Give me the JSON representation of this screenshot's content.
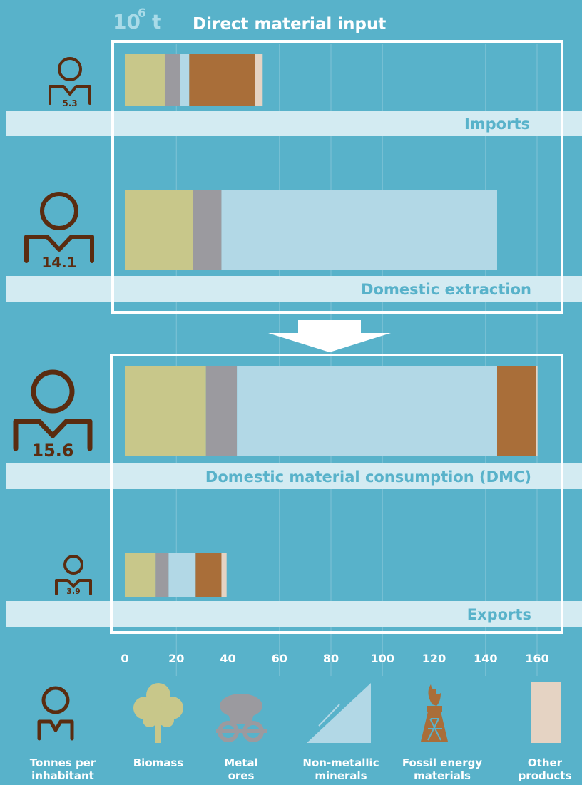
{
  "unit": {
    "base": "10",
    "exp": "6",
    "letter": "t"
  },
  "chart_data": {
    "type": "bar",
    "orientation": "horizontal",
    "stacked": true,
    "title": "Direct material input",
    "xlim": [
      0,
      160
    ],
    "xticks": [
      0,
      20,
      40,
      60,
      80,
      100,
      120,
      140,
      160
    ],
    "grid": true,
    "categories": [
      "Imports",
      "Domestic extraction",
      "Domestic material consumption (DMC)",
      "Exports"
    ],
    "tonnes_per_inhabitant": [
      "5.3",
      "14.1",
      "15.6",
      "3.9"
    ],
    "series": [
      {
        "name": "Biomass",
        "color": "#c8c78a",
        "values": [
          15.5,
          26.5,
          31.5,
          12
        ]
      },
      {
        "name": "Metal ores",
        "color": "#9b9a9f",
        "values": [
          6,
          11,
          12,
          5
        ]
      },
      {
        "name": "Non-metallic minerals",
        "color": "#b2d8e6",
        "values": [
          3.5,
          107,
          101,
          10.5
        ]
      },
      {
        "name": "Fossil energy materials",
        "color": "#a96e39",
        "values": [
          25.5,
          0,
          15,
          10
        ]
      },
      {
        "name": "Other products",
        "color": "#e5d3c3",
        "values": [
          3,
          0,
          0.7,
          2
        ]
      }
    ]
  },
  "legend": [
    {
      "icon": "person-icon",
      "lines": [
        "Tonnes per",
        "inhabitant"
      ]
    },
    {
      "icon": "tree-icon",
      "lines": [
        "Biomass"
      ]
    },
    {
      "icon": "mine-cart-icon",
      "lines": [
        "Metal",
        "ores"
      ]
    },
    {
      "icon": "pickaxe-hill-icon",
      "lines": [
        "Non-metallic",
        "minerals"
      ]
    },
    {
      "icon": "oil-derrick-icon",
      "lines": [
        "Fossil energy",
        "materials"
      ]
    },
    {
      "icon": "rectangle-icon",
      "lines": [
        "Other",
        "products"
      ]
    }
  ]
}
